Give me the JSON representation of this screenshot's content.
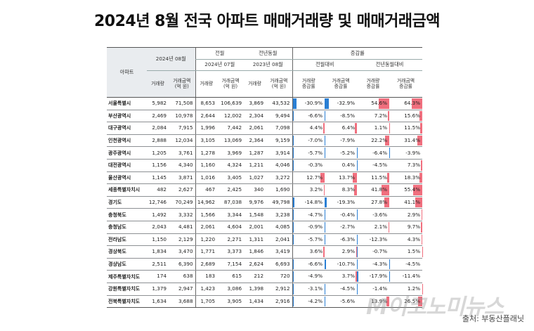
{
  "title": "2024년 8월 전국 아파트 매매거래량 및 매매거래금액",
  "header": {
    "region": "아파트",
    "current": "2024년 08월",
    "prev_month": "전월",
    "prev_month_date": "2024년 07월",
    "prev_year": "전년동월",
    "prev_year_date": "2023년 08월",
    "change": "증감률",
    "vs_prev_month": "전월대비",
    "vs_prev_year": "전년동월대비",
    "volume": "거래량",
    "amount": "거래금액\n(억 원)",
    "vol_change": "거래량\n증감률",
    "amt_change": "거래금액\n증감률"
  },
  "rows": [
    {
      "region": "서울특별시",
      "vol": "5,982",
      "amt": "71,508",
      "pm_vol": "8,653",
      "pm_amt": "106,639",
      "py_vol": "3,869",
      "py_amt": "43,532",
      "pm_vol_chg": "-30.9%",
      "pm_amt_chg": "-32.9%",
      "py_vol_chg": "54.6%",
      "py_amt_chg": "64.3%"
    },
    {
      "region": "부산광역시",
      "vol": "2,469",
      "amt": "10,978",
      "pm_vol": "2,644",
      "pm_amt": "12,002",
      "py_vol": "2,304",
      "py_amt": "9,494",
      "pm_vol_chg": "-6.6%",
      "pm_amt_chg": "-8.5%",
      "py_vol_chg": "7.2%",
      "py_amt_chg": "15.6%"
    },
    {
      "region": "대구광역시",
      "vol": "2,084",
      "amt": "7,915",
      "pm_vol": "1,996",
      "pm_amt": "7,442",
      "py_vol": "2,061",
      "py_amt": "7,098",
      "pm_vol_chg": "4.4%",
      "pm_amt_chg": "6.4%",
      "py_vol_chg": "1.1%",
      "py_amt_chg": "11.5%"
    },
    {
      "region": "인천광역시",
      "vol": "2,888",
      "amt": "12,034",
      "pm_vol": "3,105",
      "pm_amt": "13,069",
      "py_vol": "2,364",
      "py_amt": "9,159",
      "pm_vol_chg": "-7.0%",
      "pm_amt_chg": "-7.9%",
      "py_vol_chg": "22.2%",
      "py_amt_chg": "31.4%"
    },
    {
      "region": "광주광역시",
      "vol": "1,205",
      "amt": "3,761",
      "pm_vol": "1,278",
      "pm_amt": "3,969",
      "py_vol": "1,287",
      "py_amt": "3,914",
      "pm_vol_chg": "-5.7%",
      "pm_amt_chg": "-5.2%",
      "py_vol_chg": "-6.4%",
      "py_amt_chg": "-3.9%"
    },
    {
      "region": "대전광역시",
      "vol": "1,156",
      "amt": "4,340",
      "pm_vol": "1,160",
      "pm_amt": "4,324",
      "py_vol": "1,211",
      "py_amt": "4,046",
      "pm_vol_chg": "-0.3%",
      "pm_amt_chg": "0.4%",
      "py_vol_chg": "-4.5%",
      "py_amt_chg": "7.3%"
    },
    {
      "region": "울산광역시",
      "vol": "1,145",
      "amt": "3,871",
      "pm_vol": "1,016",
      "pm_amt": "3,405",
      "py_vol": "1,027",
      "py_amt": "3,272",
      "pm_vol_chg": "12.7%",
      "pm_amt_chg": "13.7%",
      "py_vol_chg": "11.5%",
      "py_amt_chg": "18.3%"
    },
    {
      "region": "세종특별자치시",
      "vol": "482",
      "amt": "2,627",
      "pm_vol": "467",
      "pm_amt": "2,425",
      "py_vol": "340",
      "py_amt": "1,690",
      "pm_vol_chg": "3.2%",
      "pm_amt_chg": "8.3%",
      "py_vol_chg": "41.8%",
      "py_amt_chg": "55.4%"
    },
    {
      "region": "경기도",
      "vol": "12,746",
      "amt": "70,249",
      "pm_vol": "14,962",
      "pm_amt": "87,038",
      "py_vol": "9,976",
      "py_amt": "49,798",
      "pm_vol_chg": "-14.8%",
      "pm_amt_chg": "-19.3%",
      "py_vol_chg": "27.8%",
      "py_amt_chg": "41.1%"
    },
    {
      "region": "충청북도",
      "vol": "1,492",
      "amt": "3,332",
      "pm_vol": "1,566",
      "pm_amt": "3,344",
      "py_vol": "1,548",
      "py_amt": "3,238",
      "pm_vol_chg": "-4.7%",
      "pm_amt_chg": "-0.4%",
      "py_vol_chg": "-3.6%",
      "py_amt_chg": "2.9%"
    },
    {
      "region": "충청남도",
      "vol": "2,043",
      "amt": "4,481",
      "pm_vol": "2,061",
      "pm_amt": "4,604",
      "py_vol": "2,001",
      "py_amt": "4,085",
      "pm_vol_chg": "-0.9%",
      "pm_amt_chg": "-2.7%",
      "py_vol_chg": "2.1%",
      "py_amt_chg": "9.7%"
    },
    {
      "region": "전라남도",
      "vol": "1,150",
      "amt": "2,129",
      "pm_vol": "1,220",
      "pm_amt": "2,271",
      "py_vol": "1,311",
      "py_amt": "2,041",
      "pm_vol_chg": "-5.7%",
      "pm_amt_chg": "-6.3%",
      "py_vol_chg": "-12.3%",
      "py_amt_chg": "4.3%"
    },
    {
      "region": "경상북도",
      "vol": "1,834",
      "amt": "3,470",
      "pm_vol": "1,771",
      "pm_amt": "3,373",
      "py_vol": "1,846",
      "py_amt": "3,419",
      "pm_vol_chg": "3.6%",
      "pm_amt_chg": "2.9%",
      "py_vol_chg": "-0.7%",
      "py_amt_chg": "1.5%"
    },
    {
      "region": "경상남도",
      "vol": "2,511",
      "amt": "6,390",
      "pm_vol": "2,689",
      "pm_amt": "7,154",
      "py_vol": "2,624",
      "py_amt": "6,693",
      "pm_vol_chg": "-6.6%",
      "pm_amt_chg": "-10.7%",
      "py_vol_chg": "-4.3%",
      "py_amt_chg": "-4.5%"
    },
    {
      "region": "제주특별자치도",
      "vol": "174",
      "amt": "638",
      "pm_vol": "183",
      "pm_amt": "615",
      "py_vol": "212",
      "py_amt": "720",
      "pm_vol_chg": "-4.9%",
      "pm_amt_chg": "3.7%",
      "py_vol_chg": "-17.9%",
      "py_amt_chg": "-11.4%"
    },
    {
      "region": "강원특별자치도",
      "vol": "1,379",
      "amt": "2,947",
      "pm_vol": "1,423",
      "pm_amt": "3,086",
      "py_vol": "1,398",
      "py_amt": "2,912",
      "pm_vol_chg": "-3.1%",
      "pm_amt_chg": "-4.5%",
      "py_vol_chg": "-1.4%",
      "py_amt_chg": "1.2%"
    },
    {
      "region": "전북특별자치도",
      "vol": "1,634",
      "amt": "3,688",
      "pm_vol": "1,705",
      "pm_amt": "3,905",
      "py_vol": "1,434",
      "py_amt": "2,916",
      "pm_vol_chg": "-4.2%",
      "pm_amt_chg": "-5.6%",
      "py_vol_chg": "13.9%",
      "py_amt_chg": "26.5%"
    }
  ],
  "colors": {
    "negative_bar": "#2a7fd4",
    "positive_bar": "#f06f7e",
    "header_shade": "#e9ecef"
  },
  "watermark": "M이코노미뉴스",
  "source": "출처: 부동산플래닛"
}
